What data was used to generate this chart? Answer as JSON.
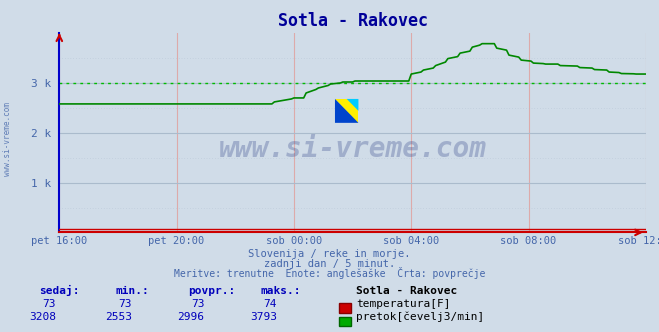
{
  "title": "Sotla - Rakovec",
  "title_color": "#000099",
  "bg_color": "#d0dce8",
  "plot_bg_color": "#d0dce8",
  "left_axis_color": "#0000cc",
  "bottom_axis_color": "#cc0000",
  "grid_color_h": "#aabbcc",
  "grid_color_v": "#ddaaaa",
  "text_color": "#4466aa",
  "x_tick_labels": [
    "pet 16:00",
    "pet 20:00",
    "sob 00:00",
    "sob 04:00",
    "sob 08:00",
    "sob 12:00"
  ],
  "x_tick_positions": [
    0,
    48,
    96,
    144,
    192,
    240
  ],
  "y_tick_labels": [
    "1 k",
    "2 k",
    "3 k"
  ],
  "y_tick_positions": [
    1000,
    2000,
    3000
  ],
  "ylim": [
    0,
    4000
  ],
  "xlim": [
    0,
    240
  ],
  "temp_color": "#cc0000",
  "flow_color": "#008800",
  "avg_line_color": "#00bb00",
  "avg_line_value": 3000,
  "watermark_text": "www.si-vreme.com",
  "watermark_color": "#334488",
  "sidebar_text": "www.si-vreme.com",
  "subtitle1": "Slovenija / reke in morje.",
  "subtitle2": "zadnji dan / 5 minut.",
  "subtitle3": "Meritve: trenutne  Enote: anglešaške  Črta: povprečje",
  "legend_station": "Sotla - Rakovec",
  "legend_temp_label": "temperatura[F]",
  "legend_flow_label": "pretok[čevelj3/min]",
  "table_headers": [
    "sedaj:",
    "min.:",
    "povpr.:",
    "maks.:"
  ],
  "temp_values": [
    73,
    73,
    73,
    74
  ],
  "flow_values": [
    3208,
    2553,
    2996,
    3793
  ],
  "flow_curve": [
    [
      0,
      2580
    ],
    [
      87,
      2580
    ],
    [
      88,
      2620
    ],
    [
      95,
      2680
    ],
    [
      96,
      2700
    ],
    [
      100,
      2700
    ],
    [
      101,
      2800
    ],
    [
      105,
      2870
    ],
    [
      106,
      2900
    ],
    [
      110,
      2950
    ],
    [
      111,
      2980
    ],
    [
      115,
      3000
    ],
    [
      116,
      3020
    ],
    [
      120,
      3020
    ],
    [
      121,
      3040
    ],
    [
      143,
      3040
    ],
    [
      144,
      3180
    ],
    [
      148,
      3220
    ],
    [
      149,
      3260
    ],
    [
      153,
      3300
    ],
    [
      154,
      3350
    ],
    [
      158,
      3420
    ],
    [
      159,
      3490
    ],
    [
      163,
      3530
    ],
    [
      164,
      3600
    ],
    [
      168,
      3640
    ],
    [
      169,
      3720
    ],
    [
      172,
      3760
    ],
    [
      173,
      3790
    ],
    [
      178,
      3790
    ],
    [
      179,
      3700
    ],
    [
      183,
      3660
    ],
    [
      184,
      3560
    ],
    [
      188,
      3520
    ],
    [
      189,
      3460
    ],
    [
      193,
      3440
    ],
    [
      194,
      3400
    ],
    [
      198,
      3390
    ],
    [
      199,
      3380
    ],
    [
      204,
      3380
    ],
    [
      205,
      3350
    ],
    [
      212,
      3340
    ],
    [
      213,
      3310
    ],
    [
      218,
      3300
    ],
    [
      219,
      3270
    ],
    [
      224,
      3260
    ],
    [
      225,
      3220
    ],
    [
      229,
      3210
    ],
    [
      230,
      3190
    ],
    [
      235,
      3185
    ],
    [
      236,
      3180
    ],
    [
      240,
      3180
    ]
  ],
  "temp_curve": [
    [
      0,
      73
    ],
    [
      240,
      73
    ]
  ]
}
